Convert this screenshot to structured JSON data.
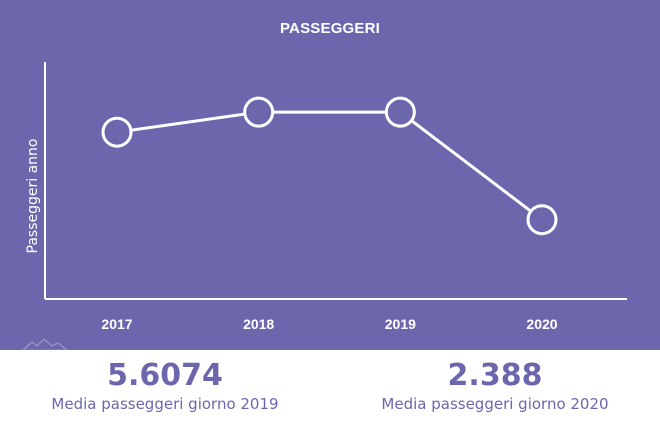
{
  "colors": {
    "panel_bg": "#6c67ad",
    "line": "#ffffff",
    "marker_fill": "#6c67ad",
    "stat_text": "#6c67ad"
  },
  "chart_data": {
    "type": "line",
    "title": "PASSEGGERI",
    "xlabel": "",
    "ylabel": "Passeggeri anno",
    "categories": [
      "2017",
      "2018",
      "2019",
      "2020"
    ],
    "series": [
      {
        "values": [
          1830000,
          2050000,
          2050000,
          870000
        ]
      }
    ],
    "ylim": [
      0,
      2600000
    ],
    "y_tick_labels_shown": false,
    "grid": false,
    "legend": "none"
  },
  "stats": [
    {
      "value": "5.6074",
      "label": "Media passeggeri giorno 2019"
    },
    {
      "value": "2.388",
      "label": "Media passeggeri giorno 2020"
    }
  ],
  "icons": {
    "corner_logo": "mountain-logo-icon"
  }
}
